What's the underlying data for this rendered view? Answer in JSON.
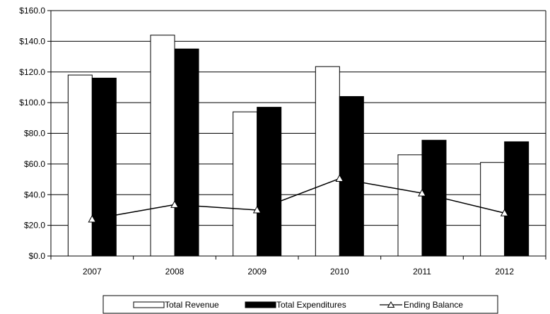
{
  "chart_data": {
    "type": "bar",
    "categories": [
      "2007",
      "2008",
      "2009",
      "2010",
      "2011",
      "2012"
    ],
    "series": [
      {
        "name": "Total Revenue",
        "kind": "bar",
        "color": "#ffffff",
        "values": [
          118.0,
          144.0,
          94.0,
          123.5,
          66.0,
          61.0
        ]
      },
      {
        "name": "Total Expenditures",
        "kind": "bar",
        "color": "#000000",
        "values": [
          116.0,
          135.0,
          97.0,
          104.0,
          75.5,
          74.5
        ]
      },
      {
        "name": "Ending Balance",
        "kind": "line",
        "marker": "triangle",
        "color": "#000000",
        "values": [
          24.0,
          33.5,
          30.0,
          50.5,
          41.0,
          28.0
        ]
      }
    ],
    "ylim": [
      0,
      160
    ],
    "yticks": [
      "$0.0",
      "$20.0",
      "$40.0",
      "$60.0",
      "$80.0",
      "$100.0",
      "$120.0",
      "$140.0",
      "$160.0"
    ],
    "ytick_values": [
      0,
      20,
      40,
      60,
      80,
      100,
      120,
      140,
      160
    ],
    "grid": true,
    "legend_position": "bottom"
  }
}
